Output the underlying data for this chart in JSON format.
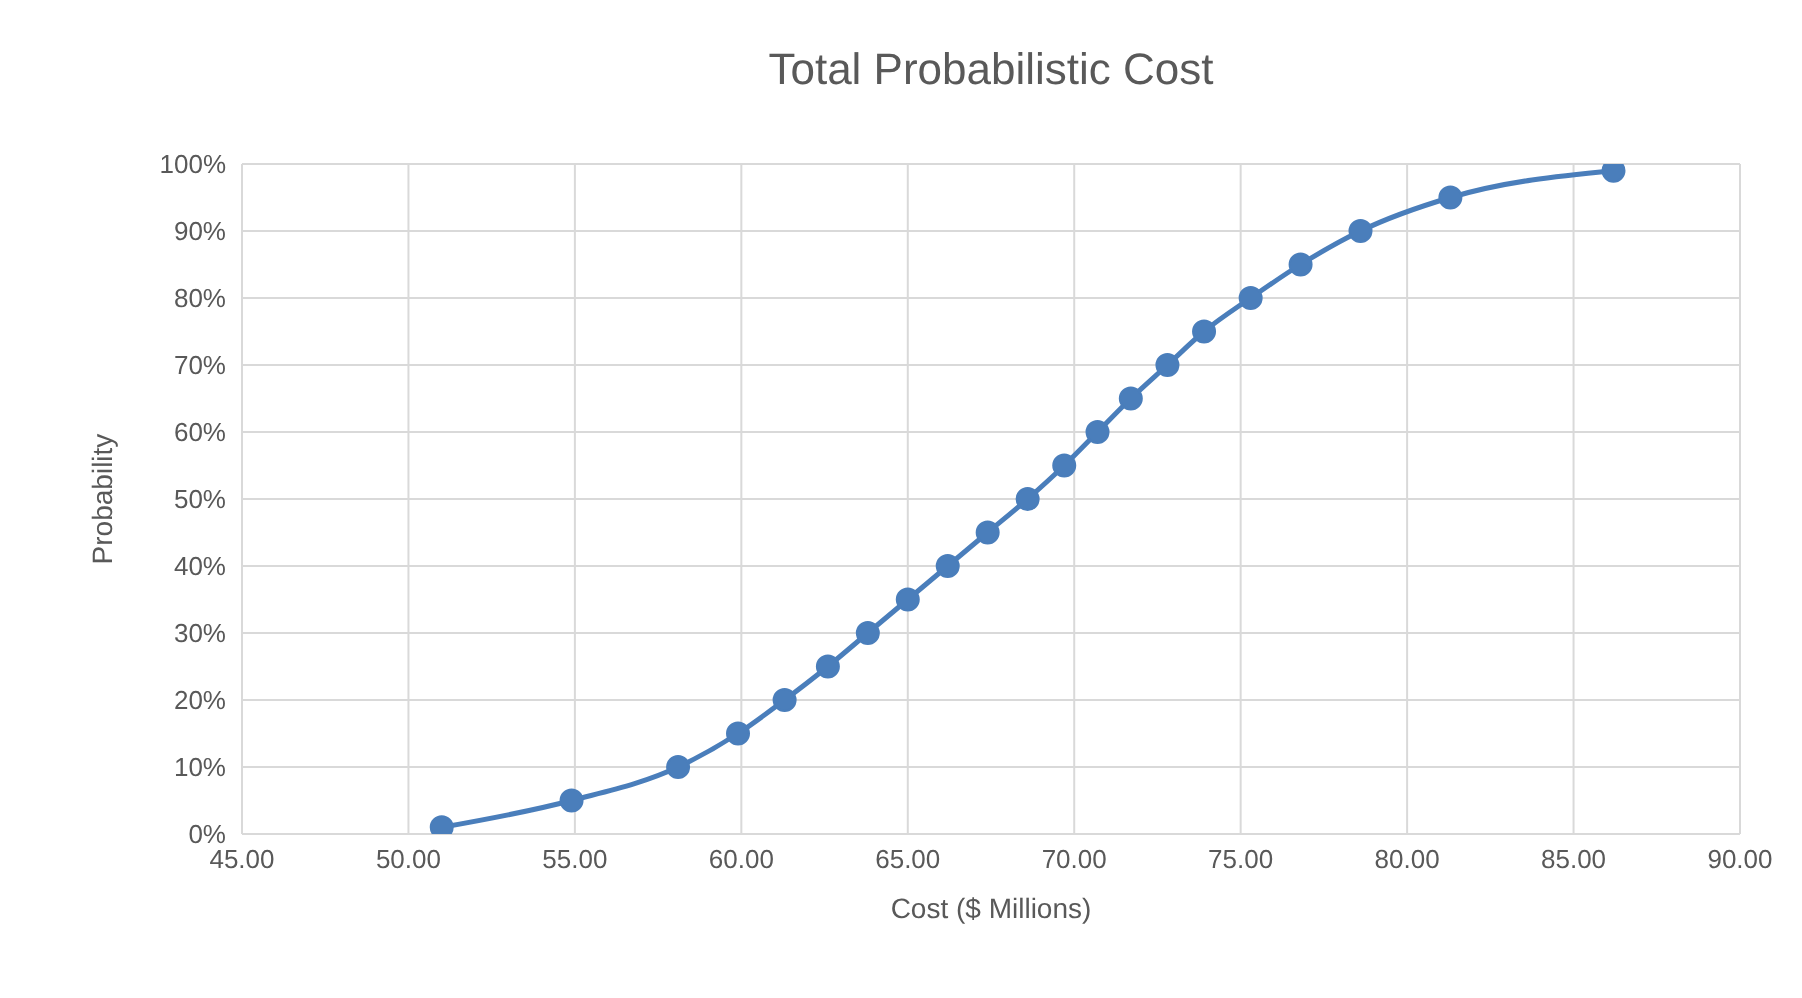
{
  "chart_data": {
    "type": "line",
    "title": "Total Probabilistic Cost",
    "xlabel": "Cost ($ Millions)",
    "ylabel": "Probability",
    "x": [
      51.0,
      54.9,
      58.1,
      59.9,
      61.3,
      62.6,
      63.8,
      65.0,
      66.2,
      67.4,
      68.6,
      69.7,
      70.7,
      71.7,
      72.8,
      73.9,
      75.3,
      76.8,
      78.6,
      81.3,
      86.2
    ],
    "series": [
      {
        "color": "#4a7ebb",
        "values": [
          1,
          5,
          10,
          15,
          20,
          25,
          30,
          35,
          40,
          45,
          50,
          55,
          60,
          65,
          70,
          75,
          80,
          85,
          90,
          95,
          99
        ]
      }
    ],
    "xlim": [
      45,
      90
    ],
    "xticks": [
      {
        "value": 45,
        "label": "45.00"
      },
      {
        "value": 50,
        "label": "50.00"
      },
      {
        "value": 55,
        "label": "55.00"
      },
      {
        "value": 60,
        "label": "60.00"
      },
      {
        "value": 65,
        "label": "65.00"
      },
      {
        "value": 70,
        "label": "70.00"
      },
      {
        "value": 75,
        "label": "75.00"
      },
      {
        "value": 80,
        "label": "80.00"
      },
      {
        "value": 85,
        "label": "85.00"
      },
      {
        "value": 90,
        "label": "90.00"
      }
    ],
    "ylim": [
      0,
      100
    ],
    "yticks": [
      {
        "value": 0,
        "label": "0%"
      },
      {
        "value": 10,
        "label": "10%"
      },
      {
        "value": 20,
        "label": "20%"
      },
      {
        "value": 30,
        "label": "30%"
      },
      {
        "value": 40,
        "label": "40%"
      },
      {
        "value": 50,
        "label": "50%"
      },
      {
        "value": 60,
        "label": "60%"
      },
      {
        "value": 70,
        "label": "70%"
      },
      {
        "value": 80,
        "label": "80%"
      },
      {
        "value": 90,
        "label": "90%"
      },
      {
        "value": 100,
        "label": "100%"
      }
    ],
    "grid": true,
    "marker": "circle",
    "line_style": "solid"
  }
}
